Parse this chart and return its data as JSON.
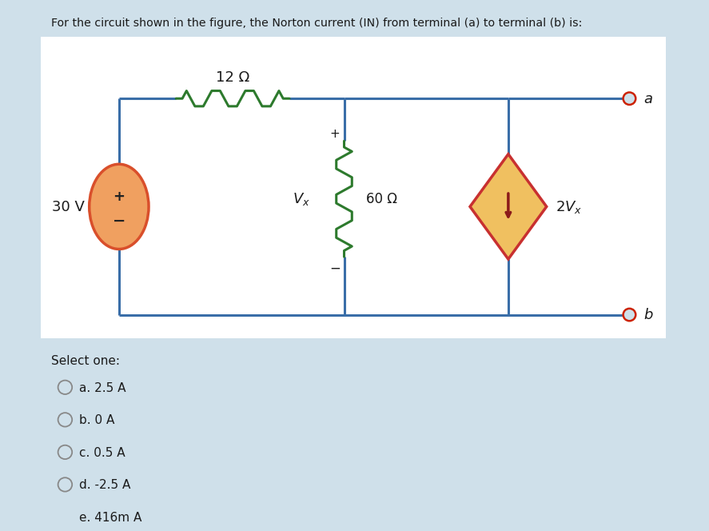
{
  "title": "For the circuit shown in the figure, the Norton current (IN) from terminal (a) to terminal (b) is:",
  "bg_outer": "#cfe0ea",
  "bg_inner": "#ffffff",
  "wire_color": "#3a6ea8",
  "resistor_color": "#2d7a2d",
  "vs_edge_color": "#d94f2b",
  "vs_face_color": "#f0a060",
  "cs_edge_color": "#c83030",
  "cs_face_color": "#f0c060",
  "cs_arrow_color": "#8b1a1a",
  "terminal_color": "#cc2200",
  "text_color": "#1a1a1a",
  "select_options": [
    "a. 2.5 A",
    "b. 0 A",
    "c. 0.5 A",
    "d. -2.5 A",
    "e. 416m A"
  ],
  "resistor_12_label": "12 Ω",
  "resistor_60_label": "60 Ω",
  "voltage_label": "30 V",
  "terminal_a": "a",
  "terminal_b": "b",
  "select_one": "Select one:"
}
